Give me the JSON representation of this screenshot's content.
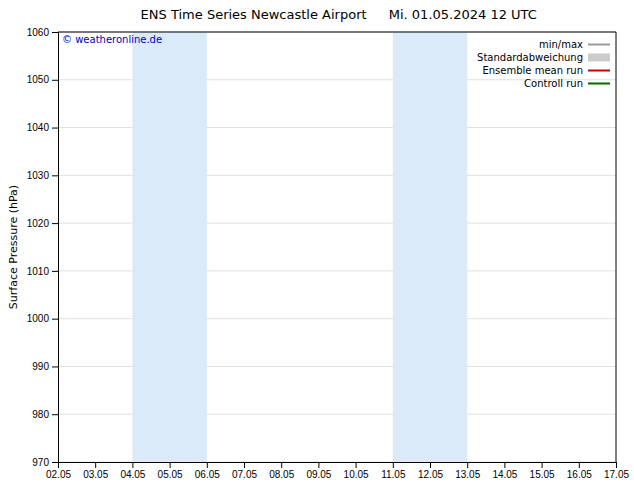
{
  "chart_data": {
    "type": "line",
    "title": "ENS Time Series Newcastle Airport",
    "subtitle": "Mi. 01.05.2024 12 UTC",
    "y_label": "Surface Pressure (hPa)",
    "categories": [
      "02.05",
      "03.05",
      "04.05",
      "05.05",
      "06.05",
      "07.05",
      "08.05",
      "09.05",
      "10.05",
      "11.05",
      "12.05",
      "13.05",
      "14.05",
      "15.05",
      "16.05",
      "17.05"
    ],
    "ylim": [
      970,
      1060
    ],
    "yticks": [
      970,
      980,
      990,
      1000,
      1010,
      1020,
      1030,
      1040,
      1050,
      1060
    ],
    "grid": "y",
    "legend": "upper right",
    "shaded_regions": [
      {
        "from": "04.05",
        "to": "06.05",
        "color": "#daeaf8"
      },
      {
        "from": "11.05",
        "to": "13.05",
        "color": "#daeaf8"
      }
    ],
    "annotations": [
      {
        "text": "© weatheronline.de",
        "color": "#0000bb"
      }
    ],
    "series": [
      {
        "name": "min/max",
        "color": "#999999",
        "line_style": "solid"
      },
      {
        "name": "Standardabweichung",
        "color": "#cccccc",
        "type": "area"
      },
      {
        "name": "Ensemble mean run",
        "color": "#cc0000",
        "line_style": "solid"
      },
      {
        "name": "Controll run",
        "color": "#006600",
        "line_style": "solid"
      }
    ]
  }
}
